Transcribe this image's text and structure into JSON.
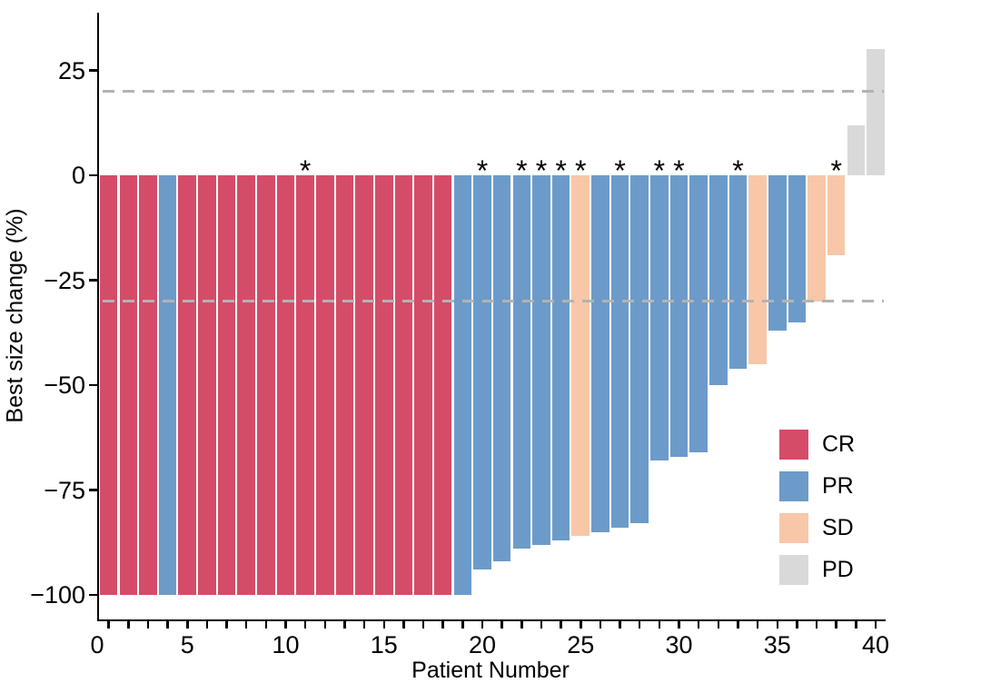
{
  "figure": {
    "background": "#ffffff",
    "star_symbol": "*"
  },
  "chart_data": {
    "type": "bar",
    "subtype": "waterfall",
    "title": "",
    "xlabel": "Patient Number",
    "ylabel": "Best size change (%)",
    "xlim": [
      0,
      40
    ],
    "ylim": [
      -105,
      35
    ],
    "grid": false,
    "yticks": [
      25,
      0,
      -25,
      -50,
      -75,
      -100
    ],
    "ytick_labels": [
      "25",
      "0",
      "−25",
      "−50",
      "−75",
      "−100"
    ],
    "xticks": [
      0,
      5,
      10,
      15,
      20,
      25,
      30,
      35,
      40
    ],
    "xtick_labels": [
      "0",
      "5",
      "10",
      "15",
      "20",
      "25",
      "30",
      "35",
      "40"
    ],
    "x_minor_ticks_every": 1,
    "thresholds": {
      "upper": 20,
      "lower": -30,
      "line_style": "dashed",
      "line_color": "#b3b3b3"
    },
    "colors": {
      "CR": "#d54c68",
      "PR": "#6c9bc9",
      "SD": "#f8c7a8",
      "PD": "#d9d9d9"
    },
    "legend": {
      "position": "inside-right",
      "entries": [
        {
          "code": "CR",
          "label": "CR"
        },
        {
          "code": "PR",
          "label": "PR"
        },
        {
          "code": "SD",
          "label": "SD"
        },
        {
          "code": "PD",
          "label": "PD"
        }
      ]
    },
    "annotated_patients": [
      11,
      20,
      22,
      23,
      24,
      25,
      27,
      29,
      30,
      33,
      38
    ],
    "patients": [
      {
        "n": 1,
        "value": -100,
        "response": "CR",
        "star": false
      },
      {
        "n": 2,
        "value": -100,
        "response": "CR",
        "star": false
      },
      {
        "n": 3,
        "value": -100,
        "response": "CR",
        "star": false
      },
      {
        "n": 4,
        "value": -100,
        "response": "PR",
        "star": false
      },
      {
        "n": 5,
        "value": -100,
        "response": "CR",
        "star": false
      },
      {
        "n": 6,
        "value": -100,
        "response": "CR",
        "star": false
      },
      {
        "n": 7,
        "value": -100,
        "response": "CR",
        "star": false
      },
      {
        "n": 8,
        "value": -100,
        "response": "CR",
        "star": false
      },
      {
        "n": 9,
        "value": -100,
        "response": "CR",
        "star": false
      },
      {
        "n": 10,
        "value": -100,
        "response": "CR",
        "star": false
      },
      {
        "n": 11,
        "value": -100,
        "response": "CR",
        "star": true
      },
      {
        "n": 12,
        "value": -100,
        "response": "CR",
        "star": false
      },
      {
        "n": 13,
        "value": -100,
        "response": "CR",
        "star": false
      },
      {
        "n": 14,
        "value": -100,
        "response": "CR",
        "star": false
      },
      {
        "n": 15,
        "value": -100,
        "response": "CR",
        "star": false
      },
      {
        "n": 16,
        "value": -100,
        "response": "CR",
        "star": false
      },
      {
        "n": 17,
        "value": -100,
        "response": "CR",
        "star": false
      },
      {
        "n": 18,
        "value": -100,
        "response": "CR",
        "star": false
      },
      {
        "n": 19,
        "value": -100,
        "response": "PR",
        "star": false
      },
      {
        "n": 20,
        "value": -94,
        "response": "PR",
        "star": true
      },
      {
        "n": 21,
        "value": -92,
        "response": "PR",
        "star": false
      },
      {
        "n": 22,
        "value": -89,
        "response": "PR",
        "star": true
      },
      {
        "n": 23,
        "value": -88,
        "response": "PR",
        "star": true
      },
      {
        "n": 24,
        "value": -87,
        "response": "PR",
        "star": true
      },
      {
        "n": 25,
        "value": -86,
        "response": "SD",
        "star": true
      },
      {
        "n": 26,
        "value": -85,
        "response": "PR",
        "star": false
      },
      {
        "n": 27,
        "value": -84,
        "response": "PR",
        "star": true
      },
      {
        "n": 28,
        "value": -83,
        "response": "PR",
        "star": false
      },
      {
        "n": 29,
        "value": -68,
        "response": "PR",
        "star": true
      },
      {
        "n": 30,
        "value": -67,
        "response": "PR",
        "star": true
      },
      {
        "n": 31,
        "value": -66,
        "response": "PR",
        "star": false
      },
      {
        "n": 32,
        "value": -50,
        "response": "PR",
        "star": false
      },
      {
        "n": 33,
        "value": -46,
        "response": "PR",
        "star": true
      },
      {
        "n": 34,
        "value": -45,
        "response": "SD",
        "star": false
      },
      {
        "n": 35,
        "value": -37,
        "response": "PR",
        "star": false
      },
      {
        "n": 36,
        "value": -35,
        "response": "PR",
        "star": false
      },
      {
        "n": 37,
        "value": -30,
        "response": "SD",
        "star": false
      },
      {
        "n": 38,
        "value": -19,
        "response": "SD",
        "star": true
      },
      {
        "n": 39,
        "value": 12,
        "response": "PD",
        "star": false
      },
      {
        "n": 40,
        "value": 30,
        "response": "PD",
        "star": false
      }
    ]
  }
}
